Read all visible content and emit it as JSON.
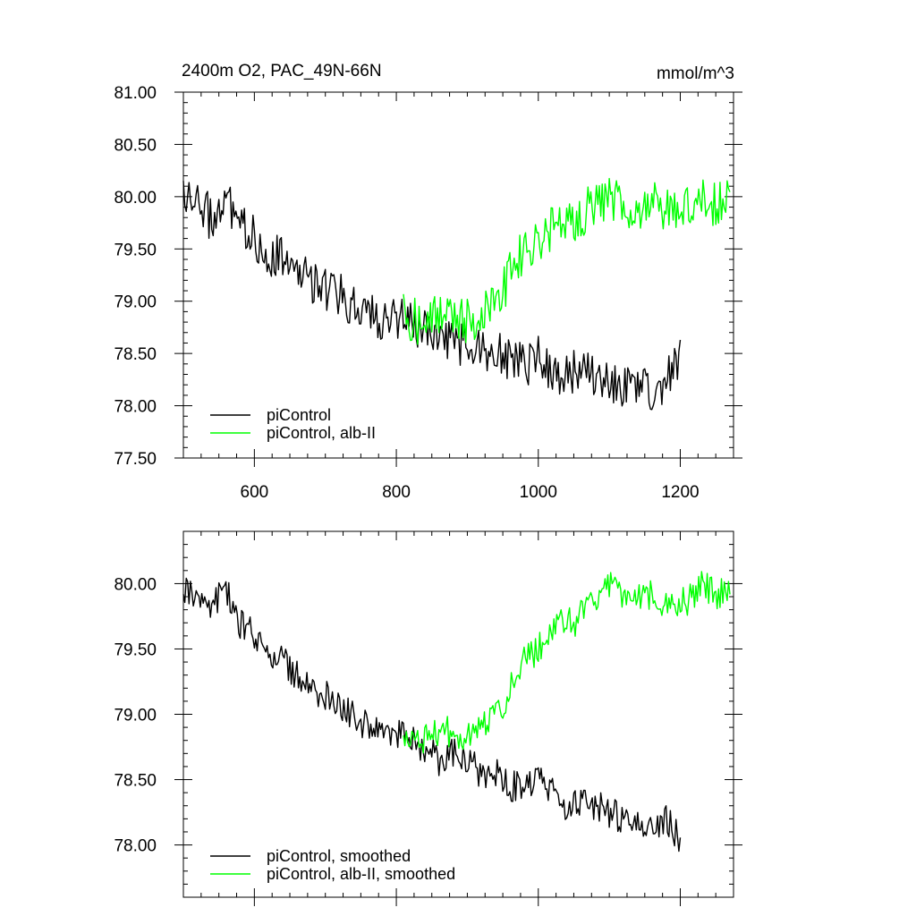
{
  "chart_data": [
    {
      "type": "line",
      "title": "2400m O2, PAC_49N-66N",
      "units": "mmol/m^3",
      "xlabel": "",
      "ylabel": "",
      "xlim": [
        500,
        1275
      ],
      "ylim": [
        77.5,
        81.0
      ],
      "x_ticks": [
        600,
        800,
        1000,
        1200
      ],
      "x_tick_labels": [
        "600",
        "800",
        "1000",
        "1200"
      ],
      "y_ticks": [
        77.5,
        78.0,
        78.5,
        79.0,
        79.5,
        80.0,
        80.5,
        81.0
      ],
      "y_tick_labels": [
        "77.50",
        "78.00",
        "78.50",
        "79.00",
        "79.50",
        "80.00",
        "80.50",
        "81.00"
      ],
      "legend_position": "bottom-left",
      "grid": false,
      "series": [
        {
          "name": "piControl",
          "color": "#000000",
          "x": [
            500,
            520,
            540,
            560,
            580,
            600,
            620,
            640,
            660,
            680,
            700,
            720,
            740,
            760,
            780,
            800,
            820,
            840,
            860,
            880,
            900,
            920,
            940,
            960,
            980,
            1000,
            1020,
            1040,
            1060,
            1080,
            1100,
            1120,
            1140,
            1160,
            1180,
            1200
          ],
          "values": [
            80.0,
            79.9,
            79.8,
            79.95,
            79.7,
            79.6,
            79.45,
            79.4,
            79.25,
            79.2,
            79.1,
            79.05,
            78.95,
            78.9,
            78.85,
            78.85,
            78.8,
            78.75,
            78.65,
            78.6,
            78.6,
            78.55,
            78.5,
            78.45,
            78.4,
            78.45,
            78.35,
            78.3,
            78.35,
            78.3,
            78.25,
            78.2,
            78.2,
            78.15,
            78.2,
            78.5
          ]
        },
        {
          "name": "piControl, alb-II",
          "color": "#00ff00",
          "x": [
            810,
            830,
            850,
            870,
            890,
            910,
            930,
            950,
            970,
            990,
            1010,
            1030,
            1050,
            1070,
            1090,
            1110,
            1130,
            1150,
            1170,
            1190,
            1210,
            1230,
            1250,
            1270
          ],
          "values": [
            78.85,
            78.8,
            78.85,
            78.9,
            78.8,
            78.85,
            78.9,
            79.1,
            79.4,
            79.5,
            79.6,
            79.8,
            79.7,
            79.9,
            79.95,
            80.0,
            79.8,
            79.95,
            79.9,
            79.85,
            79.9,
            80.05,
            79.9,
            80.1
          ]
        }
      ]
    },
    {
      "type": "line",
      "title": "",
      "xlabel": "",
      "ylabel": "",
      "xlim": [
        500,
        1275
      ],
      "ylim": [
        77.6,
        80.4
      ],
      "x_ticks": [
        600,
        800,
        1000,
        1200
      ],
      "y_ticks": [
        78.0,
        78.5,
        79.0,
        79.5,
        80.0
      ],
      "y_tick_labels": [
        "78.00",
        "78.50",
        "79.00",
        "79.50",
        "80.00"
      ],
      "legend_position": "bottom-left",
      "grid": false,
      "series": [
        {
          "name": "piControl, smoothed",
          "color": "#000000",
          "x": [
            500,
            520,
            540,
            560,
            580,
            600,
            620,
            640,
            660,
            680,
            700,
            720,
            740,
            760,
            780,
            800,
            820,
            840,
            860,
            880,
            900,
            920,
            940,
            960,
            980,
            1000,
            1020,
            1040,
            1060,
            1080,
            1100,
            1120,
            1140,
            1160,
            1180,
            1200
          ],
          "values": [
            79.95,
            79.9,
            79.85,
            79.95,
            79.7,
            79.6,
            79.45,
            79.4,
            79.3,
            79.2,
            79.15,
            79.05,
            79.0,
            78.9,
            78.85,
            78.85,
            78.8,
            78.75,
            78.65,
            78.7,
            78.65,
            78.55,
            78.55,
            78.45,
            78.45,
            78.5,
            78.4,
            78.3,
            78.35,
            78.3,
            78.25,
            78.2,
            78.2,
            78.15,
            78.2,
            78.05
          ]
        },
        {
          "name": "piControl, alb-II, smoothed",
          "color": "#00ff00",
          "x": [
            810,
            830,
            850,
            870,
            890,
            910,
            930,
            950,
            970,
            990,
            1010,
            1030,
            1050,
            1070,
            1090,
            1110,
            1130,
            1150,
            1170,
            1190,
            1210,
            1230,
            1250,
            1270
          ],
          "values": [
            78.85,
            78.8,
            78.85,
            78.9,
            78.75,
            78.85,
            78.95,
            79.05,
            79.35,
            79.45,
            79.55,
            79.75,
            79.7,
            79.85,
            79.95,
            80.0,
            79.8,
            79.95,
            79.85,
            79.85,
            79.85,
            80.0,
            79.9,
            80.0
          ]
        }
      ]
    }
  ]
}
